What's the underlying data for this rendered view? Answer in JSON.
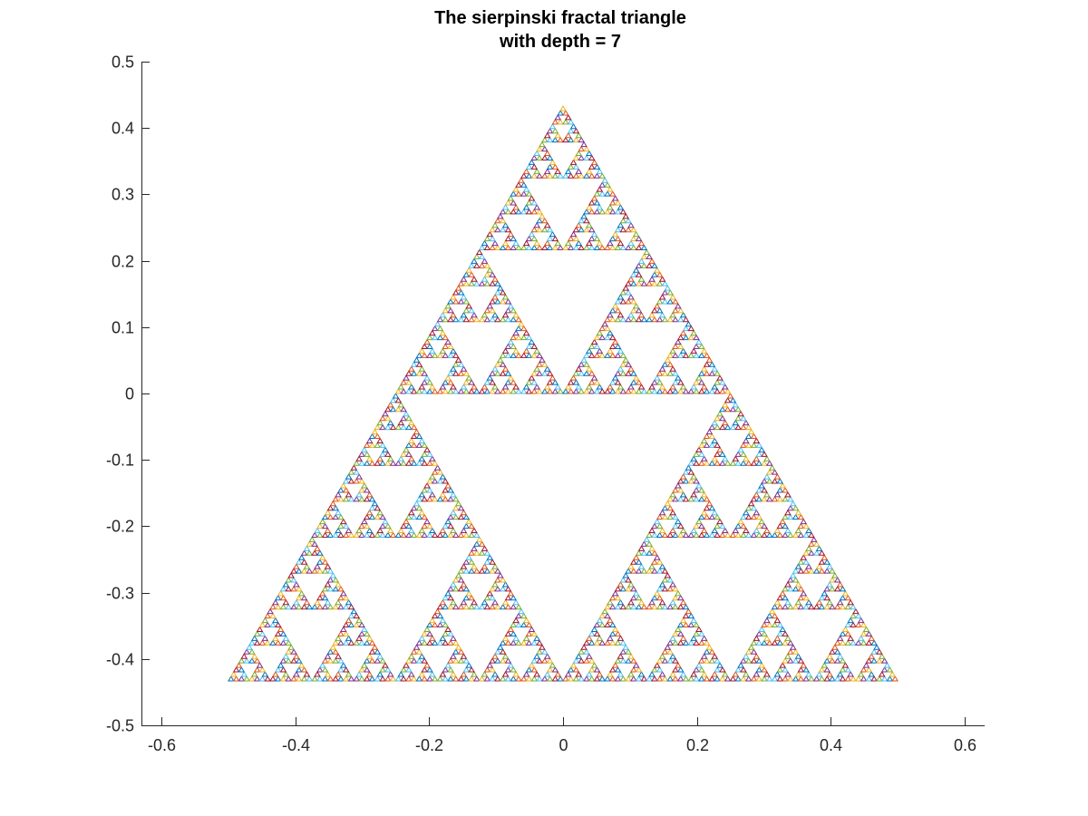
{
  "chart_data": {
    "type": "line",
    "title": [
      "The sierpinski fractal triangle",
      "with depth = 7"
    ],
    "xlabel": "",
    "ylabel": "",
    "xlim": [
      -0.63,
      0.63
    ],
    "ylim": [
      -0.5,
      0.5
    ],
    "xticks": [
      -0.6,
      -0.4,
      -0.2,
      0,
      0.2,
      0.4,
      0.6
    ],
    "xtick_labels": [
      "-0.6",
      "-0.4",
      "-0.2",
      "0",
      "0.2",
      "0.4",
      "0.6"
    ],
    "yticks": [
      -0.5,
      -0.4,
      -0.3,
      -0.2,
      -0.1,
      0,
      0.1,
      0.2,
      0.3,
      0.4,
      0.5
    ],
    "ytick_labels": [
      "-0.5",
      "-0.4",
      "-0.3",
      "-0.2",
      "-0.1",
      "0",
      "0.1",
      "0.2",
      "0.3",
      "0.4",
      "0.5"
    ],
    "grid": false,
    "box": false,
    "fractal": {
      "depth": 7,
      "vertices": [
        [
          -0.5,
          -0.433
        ],
        [
          0.5,
          -0.433
        ],
        [
          0,
          0.433
        ]
      ]
    },
    "colors": [
      "#0072BD",
      "#D95319",
      "#EDB120",
      "#7E2F8E",
      "#77AC30",
      "#4DBEEE",
      "#A2142F"
    ]
  }
}
